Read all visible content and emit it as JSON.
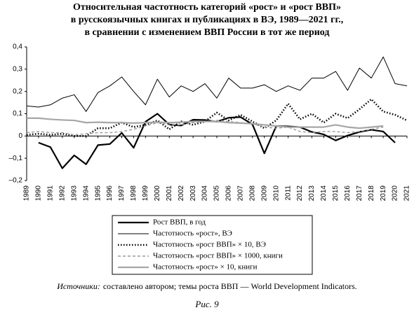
{
  "chart_data": {
    "type": "line",
    "title": [
      "Относительная частотность категорий «рост» и «рост ВВП»",
      "в русскоязычных книгах и публикациях в ВЭ, 1989—2021 гг.,",
      "в сравнении с изменением ВВП России в тот же период"
    ],
    "categories": [
      "1989",
      "1990",
      "1991",
      "1992",
      "1993",
      "1994",
      "1995",
      "1996",
      "1997",
      "1998",
      "1999",
      "2000",
      "2001",
      "2002",
      "2003",
      "2004",
      "2005",
      "2006",
      "2007",
      "2008",
      "2009",
      "2010",
      "2011",
      "2012",
      "2013",
      "2014",
      "2015",
      "2016",
      "2017",
      "2018",
      "2019",
      "2020",
      "2021"
    ],
    "ylim": [
      -0.2,
      0.4
    ],
    "yticks": [
      {
        "value": -0.2,
        "label": "–0,2"
      },
      {
        "value": -0.1,
        "label": "–0,1"
      },
      0,
      {
        "value": 0.1,
        "label": "0,1"
      },
      {
        "value": 0.2,
        "label": "0,2"
      },
      {
        "value": 0.3,
        "label": "0,3"
      },
      {
        "value": 0.4,
        "label": "0,4"
      }
    ],
    "series": [
      {
        "name": "Рост ВВП, в год",
        "color": "#000000",
        "style": "thick",
        "values": [
          null,
          -0.03,
          -0.05,
          -0.145,
          -0.087,
          -0.127,
          -0.041,
          -0.036,
          0.014,
          -0.053,
          0.064,
          0.1,
          0.051,
          0.047,
          0.073,
          0.072,
          0.064,
          0.082,
          0.085,
          0.052,
          -0.078,
          0.045,
          0.043,
          0.04,
          0.018,
          0.007,
          -0.02,
          0.002,
          0.018,
          0.028,
          0.02,
          -0.03,
          null
        ]
      },
      {
        "name": "Частотность «рост», ВЭ",
        "color": "#000000",
        "style": "thin",
        "values": [
          0.135,
          0.13,
          0.14,
          0.17,
          0.185,
          0.11,
          0.195,
          0.225,
          0.265,
          0.2,
          0.14,
          0.255,
          0.175,
          0.225,
          0.2,
          0.235,
          0.17,
          0.26,
          0.215,
          0.215,
          0.23,
          0.2,
          0.225,
          0.205,
          0.26,
          0.26,
          0.29,
          0.205,
          0.305,
          0.26,
          0.355,
          0.235,
          0.225
        ]
      },
      {
        "name": "Частотность «рост ВВП» × 10, ВЭ",
        "color": "#000000",
        "style": "dotted",
        "values": [
          0.005,
          0.01,
          0.005,
          0.01,
          0.0,
          0.0,
          0.035,
          0.035,
          0.06,
          0.04,
          0.05,
          0.07,
          0.03,
          0.065,
          0.05,
          0.065,
          0.105,
          0.07,
          0.095,
          0.065,
          0.035,
          0.07,
          0.145,
          0.075,
          0.1,
          0.06,
          0.1,
          0.08,
          0.12,
          0.165,
          0.11,
          0.095,
          0.07
        ]
      },
      {
        "name": "Частотность «рост ВВП» × 1000, книги",
        "color": "#999999",
        "style": "dashed",
        "values": [
          0.015,
          0.02,
          0.015,
          0.015,
          0.005,
          0.01,
          0.015,
          0.015,
          0.02,
          0.03,
          0.045,
          0.06,
          0.05,
          0.05,
          0.06,
          0.065,
          0.07,
          0.065,
          0.06,
          0.055,
          0.04,
          0.035,
          0.04,
          0.02,
          0.015,
          0.02,
          0.02,
          0.015,
          0.02,
          0.03,
          0.04,
          null,
          null
        ]
      },
      {
        "name": "Частотность «рост» × 10, книги",
        "color": "#a6a6a6",
        "style": "thick",
        "values": [
          0.08,
          0.08,
          0.075,
          0.072,
          0.07,
          0.06,
          0.062,
          0.06,
          0.06,
          0.058,
          0.06,
          0.062,
          0.06,
          0.062,
          0.065,
          0.065,
          0.065,
          0.06,
          0.058,
          0.055,
          0.05,
          0.045,
          0.04,
          0.04,
          0.04,
          0.04,
          0.05,
          0.04,
          0.035,
          0.04,
          0.045,
          null,
          null
        ]
      }
    ],
    "source_label": "Источники:",
    "source_text": "составлено автором; темы роста ВВП — World Development Indicators.",
    "caption": "Рис. 9"
  }
}
